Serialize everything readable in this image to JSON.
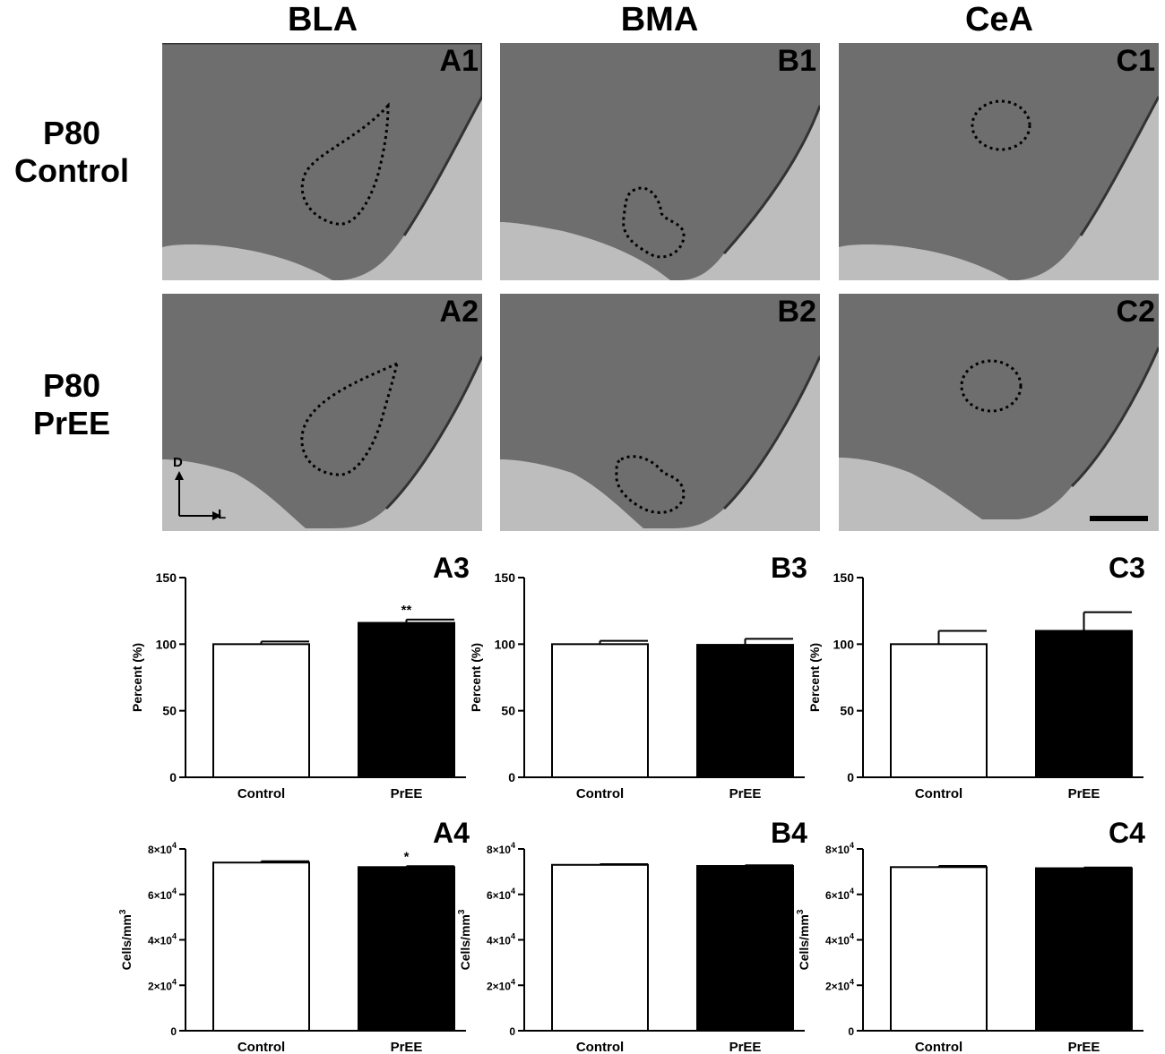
{
  "columns": [
    {
      "title": "BLA"
    },
    {
      "title": "BMA"
    },
    {
      "title": "CeA"
    }
  ],
  "rows": [
    {
      "line1": "P80",
      "line2": "Control"
    },
    {
      "line1": "P80",
      "line2": "PrEE"
    }
  ],
  "image_panels": [
    {
      "label": "A1"
    },
    {
      "label": "B1"
    },
    {
      "label": "C1"
    },
    {
      "label": "A2"
    },
    {
      "label": "B2"
    },
    {
      "label": "C2"
    }
  ],
  "orientation": {
    "dorsal": "D",
    "lateral": "L"
  },
  "colors": {
    "tissue_bg": "#bdbdbd",
    "tissue": "#6e6e6e",
    "control_bar": "#ffffff",
    "pree_bar": "#000000"
  },
  "chart_data": [
    {
      "label": "A3",
      "type": "bar",
      "categories": [
        "Control",
        "PrEE"
      ],
      "values": [
        100,
        116
      ],
      "errors": [
        2,
        2.5
      ],
      "significance": [
        "",
        "**"
      ],
      "ylabel": "Percent (%)",
      "ylim": [
        0,
        150
      ],
      "yticks": [
        "0",
        "50",
        "100",
        "150"
      ],
      "ytick_values": [
        0,
        50,
        100,
        150
      ]
    },
    {
      "label": "B3",
      "type": "bar",
      "categories": [
        "Control",
        "PrEE"
      ],
      "values": [
        100,
        99.5
      ],
      "errors": [
        2.5,
        4.5
      ],
      "significance": [
        "",
        ""
      ],
      "ylabel": "Percent (%)",
      "ylim": [
        0,
        150
      ],
      "yticks": [
        "0",
        "50",
        "100",
        "150"
      ],
      "ytick_values": [
        0,
        50,
        100,
        150
      ]
    },
    {
      "label": "C3",
      "type": "bar",
      "categories": [
        "Control",
        "PrEE"
      ],
      "values": [
        100,
        110
      ],
      "errors": [
        10,
        14
      ],
      "significance": [
        "",
        ""
      ],
      "ylabel": "Percent (%)",
      "ylim": [
        0,
        150
      ],
      "yticks": [
        "0",
        "50",
        "100",
        "150"
      ],
      "ytick_values": [
        0,
        50,
        100,
        150
      ]
    },
    {
      "label": "A4",
      "type": "bar",
      "categories": [
        "Control",
        "PrEE"
      ],
      "values": [
        74000,
        72000
      ],
      "errors": [
        600,
        400
      ],
      "significance": [
        "",
        "*"
      ],
      "ylabel": "Cells/mm",
      "ylabel_sup": "3",
      "ylim": [
        0,
        80000
      ],
      "yticks": [
        "0",
        "2×10",
        "4×10",
        "6×10",
        "8×10"
      ],
      "ytick_sup": "4",
      "ytick_values": [
        0,
        20000,
        40000,
        60000,
        80000
      ]
    },
    {
      "label": "B4",
      "type": "bar",
      "categories": [
        "Control",
        "PrEE"
      ],
      "values": [
        73000,
        72500
      ],
      "errors": [
        300,
        300
      ],
      "significance": [
        "",
        ""
      ],
      "ylabel": "Cells/mm",
      "ylabel_sup": "3",
      "ylim": [
        0,
        80000
      ],
      "yticks": [
        "0",
        "2×10",
        "4×10",
        "6×10",
        "8×10"
      ],
      "ytick_sup": "4",
      "ytick_values": [
        0,
        20000,
        40000,
        60000,
        80000
      ]
    },
    {
      "label": "C4",
      "type": "bar",
      "categories": [
        "Control",
        "PrEE"
      ],
      "values": [
        72000,
        71500
      ],
      "errors": [
        500,
        300
      ],
      "significance": [
        "",
        ""
      ],
      "ylabel": "Cells/mm",
      "ylabel_sup": "3",
      "ylim": [
        0,
        80000
      ],
      "yticks": [
        "0",
        "2×10",
        "4×10",
        "6×10",
        "8×10"
      ],
      "ytick_sup": "4",
      "ytick_values": [
        0,
        20000,
        40000,
        60000,
        80000
      ]
    }
  ]
}
